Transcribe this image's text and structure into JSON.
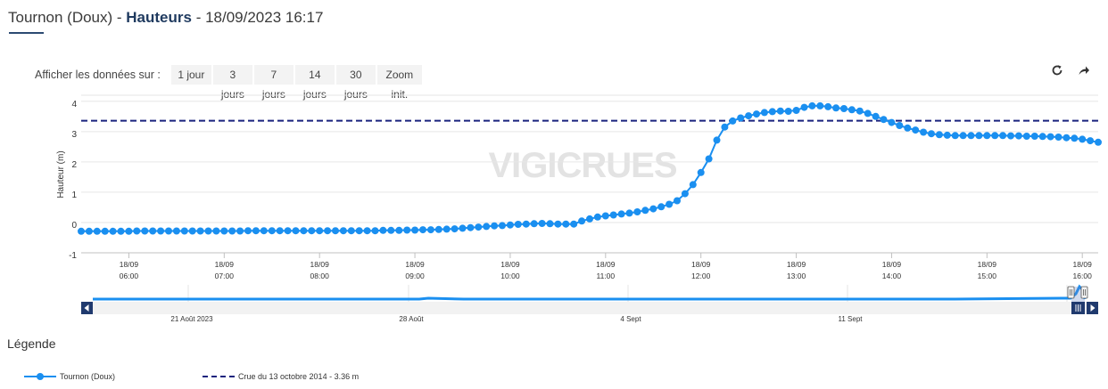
{
  "header": {
    "station": "Tournon (Doux)",
    "separator1": " - ",
    "metric": "Hauteurs",
    "separator2": " - ",
    "datetime": "18/09/2023 16:17"
  },
  "range_selector": {
    "label": "Afficher les données sur :",
    "buttons": [
      "1 jour",
      "3 jours",
      "7 jours",
      "14 jours",
      "30 jours",
      "Zoom init."
    ]
  },
  "toolbar": {
    "refresh_icon": "refresh-icon",
    "share_icon": "share-arrow-icon"
  },
  "watermark": "VIGICRUES",
  "colors": {
    "series": "#1a8ff0",
    "threshold": "#1a237e",
    "watermark": "#e3e3e3",
    "navigator": "#1a8ff0"
  },
  "legend": {
    "title": "Légende",
    "items": [
      "Tournon (Doux)",
      "Crue du 13 octobre 2014 - 3.36 m"
    ]
  },
  "navigator": {
    "labels": [
      "21 Août 2023",
      "28 Août",
      "4 Sept",
      "11 Sept"
    ]
  },
  "chart_data": {
    "type": "line",
    "ylabel": "Hauteur (m)",
    "ylim": [
      -1,
      4.2
    ],
    "y_ticks": [
      "-1",
      "0",
      "1",
      "2",
      "3",
      "4"
    ],
    "x_ticks": [
      {
        "date": "18/09",
        "time": "06:00"
      },
      {
        "date": "18/09",
        "time": "07:00"
      },
      {
        "date": "18/09",
        "time": "08:00"
      },
      {
        "date": "18/09",
        "time": "09:00"
      },
      {
        "date": "18/09",
        "time": "10:00"
      },
      {
        "date": "18/09",
        "time": "11:00"
      },
      {
        "date": "18/09",
        "time": "12:00"
      },
      {
        "date": "18/09",
        "time": "13:00"
      },
      {
        "date": "18/09",
        "time": "14:00"
      },
      {
        "date": "18/09",
        "time": "15:00"
      },
      {
        "date": "18/09",
        "time": "16:00"
      }
    ],
    "x_start": "05:30",
    "x_end": "16:10",
    "threshold": {
      "name": "Crue du 13 octobre 2014 - 3.36 m",
      "value": 3.36
    },
    "series": [
      {
        "name": "Tournon (Doux)",
        "x": [
          "05:30",
          "05:35",
          "05:40",
          "05:45",
          "05:50",
          "05:55",
          "06:00",
          "06:05",
          "06:10",
          "06:15",
          "06:20",
          "06:25",
          "06:30",
          "06:35",
          "06:40",
          "06:45",
          "06:50",
          "06:55",
          "07:00",
          "07:05",
          "07:10",
          "07:15",
          "07:20",
          "07:25",
          "07:30",
          "07:35",
          "07:40",
          "07:45",
          "07:50",
          "07:55",
          "08:00",
          "08:05",
          "08:10",
          "08:15",
          "08:20",
          "08:25",
          "08:30",
          "08:35",
          "08:40",
          "08:45",
          "08:50",
          "08:55",
          "09:00",
          "09:05",
          "09:10",
          "09:15",
          "09:20",
          "09:25",
          "09:30",
          "09:35",
          "09:40",
          "09:45",
          "09:50",
          "09:55",
          "10:00",
          "10:05",
          "10:10",
          "10:15",
          "10:20",
          "10:25",
          "10:30",
          "10:35",
          "10:40",
          "10:45",
          "10:50",
          "10:55",
          "11:00",
          "11:05",
          "11:10",
          "11:15",
          "11:20",
          "11:25",
          "11:30",
          "11:35",
          "11:40",
          "11:45",
          "11:50",
          "11:55",
          "12:00",
          "12:05",
          "12:10",
          "12:15",
          "12:20",
          "12:25",
          "12:30",
          "12:35",
          "12:40",
          "12:45",
          "12:50",
          "12:55",
          "13:00",
          "13:05",
          "13:10",
          "13:15",
          "13:20",
          "13:25",
          "13:30",
          "13:35",
          "13:40",
          "13:45",
          "13:50",
          "13:55",
          "14:00",
          "14:05",
          "14:10",
          "14:15",
          "14:20",
          "14:25",
          "14:30",
          "14:35",
          "14:40",
          "14:45",
          "14:50",
          "14:55",
          "15:00",
          "15:05",
          "15:10",
          "15:15",
          "15:20",
          "15:25",
          "15:30",
          "15:35",
          "15:40",
          "15:45",
          "15:50",
          "15:55",
          "16:00",
          "16:05",
          "16:10"
        ],
        "values": [
          -0.29,
          -0.29,
          -0.29,
          -0.29,
          -0.29,
          -0.29,
          -0.29,
          -0.28,
          -0.28,
          -0.28,
          -0.28,
          -0.28,
          -0.28,
          -0.28,
          -0.28,
          -0.28,
          -0.28,
          -0.28,
          -0.28,
          -0.28,
          -0.28,
          -0.27,
          -0.27,
          -0.27,
          -0.27,
          -0.27,
          -0.27,
          -0.27,
          -0.27,
          -0.27,
          -0.27,
          -0.27,
          -0.27,
          -0.27,
          -0.27,
          -0.27,
          -0.27,
          -0.27,
          -0.26,
          -0.26,
          -0.26,
          -0.25,
          -0.25,
          -0.24,
          -0.24,
          -0.23,
          -0.22,
          -0.21,
          -0.19,
          -0.17,
          -0.15,
          -0.13,
          -0.11,
          -0.1,
          -0.08,
          -0.06,
          -0.05,
          -0.04,
          -0.03,
          -0.04,
          -0.05,
          -0.05,
          -0.05,
          0.05,
          0.12,
          0.18,
          0.22,
          0.25,
          0.28,
          0.31,
          0.35,
          0.4,
          0.45,
          0.52,
          0.6,
          0.72,
          0.95,
          1.25,
          1.65,
          2.1,
          2.72,
          3.15,
          3.35,
          3.45,
          3.52,
          3.58,
          3.63,
          3.66,
          3.68,
          3.67,
          3.7,
          3.8,
          3.85,
          3.85,
          3.82,
          3.78,
          3.76,
          3.72,
          3.68,
          3.6,
          3.5,
          3.4,
          3.3,
          3.2,
          3.12,
          3.05,
          2.98,
          2.93,
          2.9,
          2.88,
          2.87,
          2.87,
          2.87,
          2.87,
          2.87,
          2.87,
          2.87,
          2.86,
          2.86,
          2.85,
          2.85,
          2.84,
          2.83,
          2.82,
          2.8,
          2.78,
          2.75,
          2.7,
          2.65
        ]
      }
    ]
  }
}
